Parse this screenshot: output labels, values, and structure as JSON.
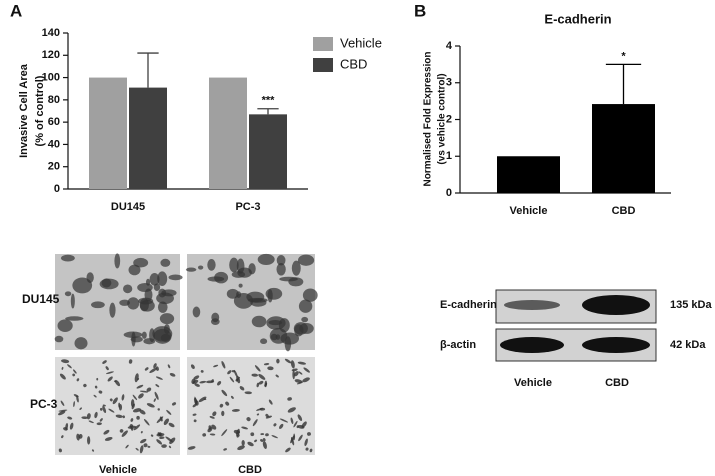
{
  "chart_data": [
    {
      "type": "bar",
      "ylabel": [
        "Invasive Cell Area",
        "(% of control)"
      ],
      "categories": [
        "DU145",
        "PC-3"
      ],
      "series": [
        {
          "name": "Vehicle",
          "color": "#a0a0a0",
          "values": [
            100,
            100
          ]
        },
        {
          "name": "CBD",
          "color": "#404040",
          "values": [
            91,
            67
          ],
          "errors": [
            31,
            5
          ],
          "annotations": [
            null,
            "***"
          ]
        }
      ],
      "ylim": [
        0,
        140
      ],
      "yticks": [
        0,
        20,
        40,
        60,
        80,
        100,
        120,
        140
      ]
    },
    {
      "type": "bar",
      "title": "E-cadherin",
      "ylabel": [
        "Normalised Fold Expression",
        "(vs vehicle control)"
      ],
      "categories": [
        "Vehicle",
        "CBD"
      ],
      "values": [
        1,
        2.42
      ],
      "errors": [
        null,
        1.08
      ],
      "annotations": [
        null,
        "*"
      ],
      "color": "#000000",
      "ylim": [
        0,
        4
      ],
      "yticks": [
        0,
        1,
        2,
        3,
        4
      ]
    }
  ],
  "panels": [
    "A",
    "B"
  ],
  "micrographs": {
    "rows": [
      "DU145",
      "PC-3"
    ],
    "columns": [
      "Vehicle",
      "CBD"
    ]
  },
  "blot": {
    "rows": [
      "E-cadherin",
      "β-actin"
    ],
    "sizes": [
      "135 kDa",
      "42 kDa"
    ],
    "columns": [
      "Vehicle",
      "CBD"
    ]
  }
}
